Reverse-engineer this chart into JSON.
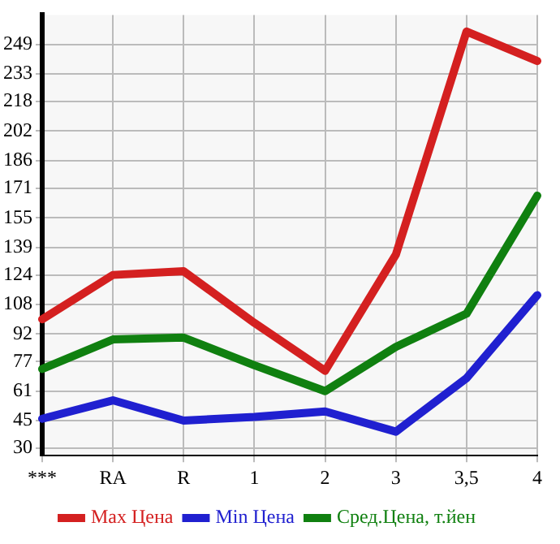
{
  "chart_data": {
    "type": "line",
    "categories": [
      "***",
      "RA",
      "R",
      "1",
      "2",
      "3",
      "3,5",
      "4"
    ],
    "series": [
      {
        "name": "Max Цена",
        "color": "#d42020",
        "values": [
          100,
          124,
          126,
          98,
          72,
          135,
          256,
          240
        ]
      },
      {
        "name": "Min Цена",
        "color": "#2020d0",
        "values": [
          46,
          56,
          45,
          47,
          50,
          39,
          68,
          113
        ]
      },
      {
        "name": "Сред.Цена, т.йен",
        "color": "#108010",
        "values": [
          73,
          89,
          90,
          75,
          61,
          85,
          103,
          167
        ]
      }
    ],
    "ylim": [
      26,
      265
    ],
    "yticks": [
      30,
      45,
      61,
      77,
      92,
      108,
      124,
      139,
      155,
      171,
      186,
      202,
      218,
      233,
      249
    ],
    "grid": true,
    "legend": "bottom",
    "marker": "none",
    "line_style": "solid"
  }
}
